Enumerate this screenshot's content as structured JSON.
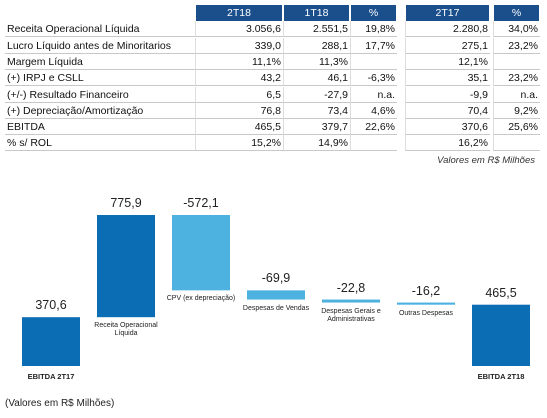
{
  "table": {
    "header": [
      "2T18",
      "1T18",
      "%",
      "2T17",
      "%"
    ],
    "rows": [
      [
        "Receita Operacional Líquida",
        "3.056,6",
        "2.551,5",
        "19,8%",
        "2.280,8",
        "34,0%"
      ],
      [
        "Lucro Líquido antes de Minoritarios",
        "339,0",
        "288,1",
        "17,7%",
        "275,1",
        "23,2%"
      ],
      [
        "Margem Líquida",
        "11,1%",
        "11,3%",
        null,
        "12,1%",
        null
      ],
      [
        "(+) IRPJ e CSLL",
        "43,2",
        "46,1",
        "-6,3%",
        "35,1",
        "23,2%"
      ],
      [
        "(+/-) Resultado Financeiro",
        "6,5",
        "-27,9",
        "n.a.",
        "-9,9",
        "n.a."
      ],
      [
        "(+) Depreciação/Amortização",
        "76,8",
        "73,4",
        "4,6%",
        "70,4",
        "9,2%"
      ],
      [
        "EBITDA",
        "465,5",
        "379,7",
        "22,6%",
        "370,6",
        "25,6%"
      ],
      [
        "% s/ ROL",
        "15,2%",
        "14,9%",
        null,
        "16,2%",
        null
      ]
    ],
    "note": "Valores em R$ Milhões"
  },
  "chart_data": {
    "type": "waterfall",
    "categories": [
      "EBITDA 2T17",
      "Receita Operacional Líquida",
      "CPV (ex depreciação)",
      "Despesas de Vendas",
      "Despesas Gerais e Administrativas",
      "Outras Despesas",
      "EBITDA 2T18"
    ],
    "values": [
      370.6,
      775.9,
      -572.1,
      -69.9,
      -22.8,
      -16.2,
      465.5
    ],
    "value_labels": [
      "370,6",
      "775,9",
      "-572,1",
      "-69,9",
      "-22,8",
      "-16,2",
      "465,5"
    ],
    "measures": [
      "total",
      "relative",
      "relative",
      "relative",
      "relative",
      "relative",
      "total"
    ],
    "colors": [
      "#0b6db3",
      "#0b6db3",
      "#4db2e0",
      "#4db2e0",
      "#4db2e0",
      "#4db2e0",
      "#0b6db3"
    ],
    "note": "(Valores em R$ Milhões)"
  }
}
